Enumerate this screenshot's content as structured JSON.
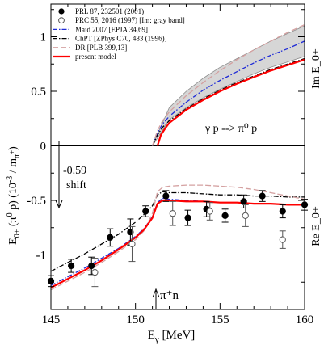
{
  "chart_data": {
    "type": "line",
    "xlabel": "E_γ [MeV]",
    "ylabel": "E_0+ (π⁰ p) (10⁻³ / m_π⁺)",
    "right_label_top": "Im E_0+",
    "right_label_bottom": "Re E_0+",
    "process_label": "γ p --> π⁰ p",
    "shift_label_value": "-0.59",
    "shift_label_word": "shift",
    "threshold_label": "π⁺n",
    "xlim": [
      145,
      160
    ],
    "ylim": [
      -1.5,
      1.3
    ],
    "xticks": [
      "145",
      "150",
      "155",
      "160"
    ],
    "yticks": [
      {
        "value": 1,
        "label": "1"
      },
      {
        "value": 0.5,
        "label": "0.5"
      },
      {
        "value": 0,
        "label": "0"
      },
      {
        "value": -0.5,
        "label": "-0.5"
      },
      {
        "value": -1,
        "label": "-1"
      }
    ],
    "legend": [
      {
        "label": "PRL 87, 232501 (2001)",
        "kind": "marker-filled"
      },
      {
        "label": "PRC 55, 2016 (1997) [Im: gray band]",
        "kind": "marker-open"
      },
      {
        "label": "Maid 2007 [EPJA 34,69]",
        "kind": "line",
        "color": "#1f2bd6",
        "dash": "6,2,1.5,2"
      },
      {
        "label": "ChPT [ZPhys C70, 483 (1996)]",
        "kind": "line",
        "color": "#000000",
        "dash": "6,2,1.5,2"
      },
      {
        "label": "DR [PLB 399,13]",
        "kind": "line",
        "color": "#d4a0a0",
        "dash": "7,3"
      },
      {
        "label": "present model",
        "kind": "line",
        "color": "#ff0000",
        "dash": ""
      }
    ],
    "gray_band": {
      "x": [
        151.0,
        152,
        153,
        154,
        155,
        156,
        157,
        158,
        159,
        160
      ],
      "upper": [
        0.0,
        0.35,
        0.5,
        0.62,
        0.72,
        0.8,
        0.88,
        0.96,
        1.03,
        1.1
      ],
      "lower": [
        0.0,
        0.24,
        0.35,
        0.44,
        0.52,
        0.59,
        0.66,
        0.72,
        0.77,
        0.82
      ]
    },
    "series": [
      {
        "name": "PRL 87, 232501 (2001)",
        "kind": "points-filled",
        "points": [
          {
            "x": 145.0,
            "y": -1.24,
            "err": 0.05
          },
          {
            "x": 146.2,
            "y": -1.1,
            "err": 0.06
          },
          {
            "x": 147.4,
            "y": -1.1,
            "err": 0.08
          },
          {
            "x": 148.5,
            "y": -0.84,
            "err": 0.08
          },
          {
            "x": 149.7,
            "y": -0.79,
            "err": 0.12
          },
          {
            "x": 150.6,
            "y": -0.6,
            "err": 0.05
          },
          {
            "x": 151.8,
            "y": -0.46,
            "err": 0.05
          },
          {
            "x": 153.1,
            "y": -0.66,
            "err": 0.07
          },
          {
            "x": 154.2,
            "y": -0.58,
            "err": 0.07
          },
          {
            "x": 155.3,
            "y": -0.64,
            "err": 0.06
          },
          {
            "x": 156.4,
            "y": -0.51,
            "err": 0.06
          },
          {
            "x": 157.5,
            "y": -0.46,
            "err": 0.05
          },
          {
            "x": 158.7,
            "y": -0.6,
            "err": 0.06
          },
          {
            "x": 160.0,
            "y": -0.54,
            "err": 0.05
          }
        ]
      },
      {
        "name": "PRC 55, 2016 (1997) [Im: gray band]",
        "kind": "points-open",
        "points": [
          {
            "x": 147.6,
            "y": -1.16,
            "err": 0.13
          },
          {
            "x": 149.8,
            "y": -0.9,
            "err": 0.16
          },
          {
            "x": 152.2,
            "y": -0.62,
            "err": 0.11
          },
          {
            "x": 154.4,
            "y": -0.6,
            "err": 0.08
          },
          {
            "x": 156.5,
            "y": -0.64,
            "err": 0.1
          },
          {
            "x": 158.7,
            "y": -0.86,
            "err": 0.08
          }
        ]
      },
      {
        "name": "Maid 2007 [EPJA 34,69]",
        "kind": "line",
        "color": "#1f2bd6",
        "dash": "6,2,1.5,2",
        "re": {
          "x": [
            145,
            146,
            147,
            148,
            149,
            150,
            150.5,
            151.0,
            151.3,
            151.6,
            152,
            153,
            154,
            155,
            156,
            157,
            158,
            159,
            160
          ],
          "y": [
            -1.28,
            -1.2,
            -1.12,
            -1.03,
            -0.94,
            -0.83,
            -0.76,
            -0.65,
            -0.52,
            -0.48,
            -0.49,
            -0.5,
            -0.51,
            -0.52,
            -0.52,
            -0.53,
            -0.53,
            -0.54,
            -0.54
          ]
        },
        "im": {
          "x": [
            151.0,
            151.3,
            151.6,
            152,
            153,
            154,
            155,
            156,
            157,
            158,
            159,
            160
          ],
          "y": [
            0.0,
            0.12,
            0.2,
            0.27,
            0.4,
            0.51,
            0.6,
            0.68,
            0.76,
            0.83,
            0.89,
            0.96
          ]
        }
      },
      {
        "name": "ChPT [ZPhys C70, 483 (1996)]",
        "kind": "line",
        "color": "#000000",
        "dash": "6,2,1.5,2",
        "re": {
          "x": [
            145,
            146,
            147,
            148,
            149,
            150,
            150.5,
            151.0,
            151.3,
            151.6,
            152,
            153,
            154,
            155,
            156,
            157,
            158,
            159,
            160
          ],
          "y": [
            -1.15,
            -1.07,
            -0.99,
            -0.9,
            -0.81,
            -0.7,
            -0.63,
            -0.55,
            -0.45,
            -0.42,
            -0.43,
            -0.43,
            -0.44,
            -0.45,
            -0.45,
            -0.46,
            -0.46,
            -0.47,
            -0.47
          ]
        },
        "im": {
          "x": [
            151.0,
            151.3,
            151.6,
            152,
            153,
            154,
            155,
            156,
            157,
            158,
            159,
            160
          ],
          "y": [
            0.0,
            0.1,
            0.17,
            0.23,
            0.34,
            0.43,
            0.51,
            0.58,
            0.64,
            0.7,
            0.75,
            0.8
          ]
        }
      },
      {
        "name": "DR [PLB 399,13]",
        "kind": "line",
        "color": "#d4a0a0",
        "dash": "7,3",
        "re": {
          "x": [
            145,
            146,
            147,
            148,
            149,
            150,
            150.5,
            151.0,
            151.3,
            151.6,
            152,
            153,
            154,
            155,
            156,
            157,
            158,
            159,
            160
          ],
          "y": [
            -1.32,
            -1.24,
            -1.16,
            -1.07,
            -0.97,
            -0.86,
            -0.78,
            -0.62,
            -0.42,
            -0.38,
            -0.37,
            -0.36,
            -0.36,
            -0.37,
            -0.38,
            -0.4,
            -0.43,
            -0.46,
            -0.49
          ]
        },
        "im": {
          "x": [
            151.0,
            151.3,
            151.6,
            152,
            153,
            154,
            155,
            156,
            157,
            158,
            159,
            160
          ],
          "y": [
            0.0,
            0.14,
            0.23,
            0.31,
            0.46,
            0.58,
            0.69,
            0.79,
            0.88,
            0.96,
            1.04,
            1.11
          ]
        }
      },
      {
        "name": "present model",
        "kind": "line",
        "color": "#ff0000",
        "dash": "",
        "re": {
          "x": [
            145,
            146,
            147,
            148,
            149,
            150,
            150.5,
            151.0,
            151.3,
            151.6,
            152,
            153,
            154,
            155,
            156,
            157,
            158,
            159,
            160
          ],
          "y": [
            -1.3,
            -1.22,
            -1.14,
            -1.05,
            -0.95,
            -0.84,
            -0.77,
            -0.66,
            -0.53,
            -0.5,
            -0.5,
            -0.51,
            -0.51,
            -0.52,
            -0.52,
            -0.53,
            -0.53,
            -0.54,
            -0.54
          ]
        },
        "im": {
          "x": [
            151.3,
            151.5,
            151.8,
            152,
            153,
            154,
            155,
            156,
            157,
            158,
            159,
            160
          ],
          "y": [
            0.0,
            0.1,
            0.17,
            0.21,
            0.33,
            0.42,
            0.5,
            0.57,
            0.63,
            0.69,
            0.74,
            0.79
          ]
        }
      }
    ]
  }
}
